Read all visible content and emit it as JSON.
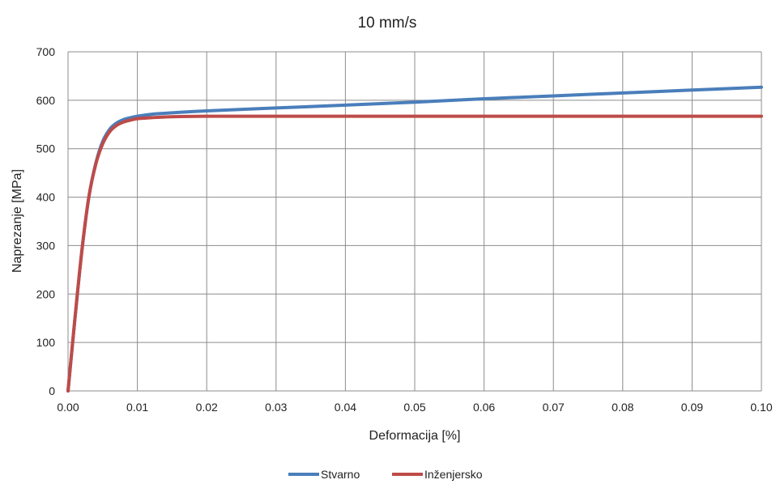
{
  "chart_data": {
    "type": "line",
    "title": "10 mm/s",
    "xlabel": "Deformacija [%]",
    "ylabel": "Naprezanje [MPa]",
    "xlim": [
      0,
      0.1
    ],
    "ylim": [
      0,
      700
    ],
    "xticks": [
      "0.00",
      "0.01",
      "0.02",
      "0.03",
      "0.04",
      "0.05",
      "0.06",
      "0.07",
      "0.08",
      "0.09",
      "0.10"
    ],
    "yticks": [
      "0",
      "100",
      "200",
      "300",
      "400",
      "500",
      "600",
      "700"
    ],
    "grid": true,
    "legend_position": "bottom",
    "series": [
      {
        "name": "Stvarno",
        "color": "#4a7ebb",
        "x": [
          0,
          0.001,
          0.002,
          0.003,
          0.004,
          0.005,
          0.006,
          0.007,
          0.008,
          0.009,
          0.01,
          0.012,
          0.015,
          0.02,
          0.03,
          0.04,
          0.05,
          0.06,
          0.07,
          0.08,
          0.09,
          0.1
        ],
        "y": [
          0,
          150,
          290,
          400,
          470,
          515,
          540,
          553,
          560,
          564,
          567,
          571,
          574,
          578,
          584,
          590,
          596,
          603,
          609,
          615,
          621,
          627
        ]
      },
      {
        "name": "Inženjersko",
        "color": "#be4b48",
        "x": [
          0,
          0.001,
          0.002,
          0.003,
          0.004,
          0.005,
          0.006,
          0.007,
          0.008,
          0.009,
          0.01,
          0.012,
          0.015,
          0.02,
          0.03,
          0.04,
          0.05,
          0.06,
          0.07,
          0.08,
          0.09,
          0.1
        ],
        "y": [
          0,
          150,
          290,
          400,
          468,
          510,
          535,
          548,
          555,
          559,
          562,
          564,
          566,
          567,
          567,
          567,
          567,
          567,
          567,
          567,
          567,
          567
        ]
      }
    ]
  }
}
